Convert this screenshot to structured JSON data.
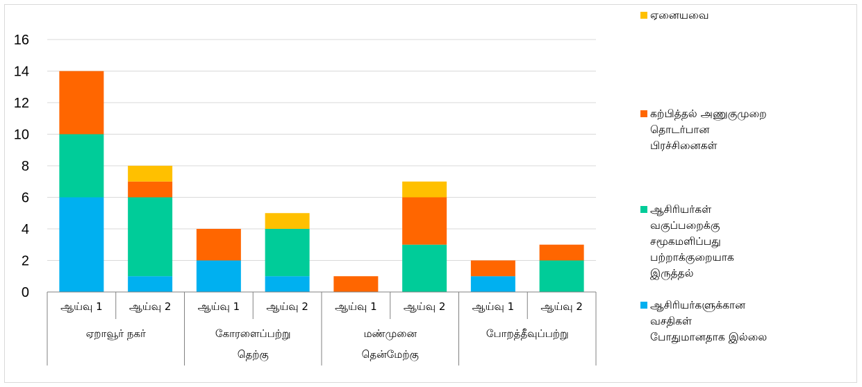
{
  "chart_data": {
    "type": "bar",
    "stacked": true,
    "ylim": [
      0,
      16
    ],
    "yticks": [
      0,
      2,
      4,
      6,
      8,
      10,
      12,
      14,
      16
    ],
    "grid": true,
    "legend_position": "right",
    "groups": [
      "ஏறாவூர் நகர்",
      "கோரளைப்பற்று தெற்கு",
      "மண்முனை தென்மேற்கு",
      "போறத்தீவுப்பற்று"
    ],
    "categories": [
      "ஆய்வு 1",
      "ஆய்வு 2",
      "ஆய்வு 1",
      "ஆய்வு 2",
      "ஆய்வு 1",
      "ஆய்வு 2",
      "ஆய்வு 1",
      "ஆய்வு 2"
    ],
    "series": [
      {
        "name": "ஆசிரியர்களுக்கான வசதிகள் போதுமானதாக இல்லை",
        "color": "#00B0F0",
        "values": [
          6,
          1,
          2,
          1,
          0,
          0,
          1,
          0
        ]
      },
      {
        "name": "ஆசிரியர்கள் வகுப்பறைக்கு சமூகமளிப்பது பற்றாக்குறையாக இருத்தல்",
        "color": "#00CC99",
        "values": [
          4,
          5,
          0,
          3,
          0,
          3,
          0,
          2
        ]
      },
      {
        "name": "கற்பித்தல் அணுகுமுறை தொடர்பான பிரச்சினைகள்",
        "color": "#FF6600",
        "values": [
          4,
          1,
          2,
          0,
          1,
          3,
          1,
          1
        ]
      },
      {
        "name": "ஏனையவை",
        "color": "#FFC000",
        "values": [
          0,
          1,
          0,
          1,
          0,
          1,
          0,
          0
        ]
      }
    ]
  },
  "legend": [
    {
      "label": "ஏனையவை",
      "color": "#FFC000"
    },
    {
      "label": "கற்பித்தல் அணுகுமுறை தொடர்பான பிரச்சினைகள்",
      "color": "#FF6600"
    },
    {
      "label": "ஆசிரியர்கள் வகுப்பறைக்கு சமூகமளிப்பது பற்றாக்குறையாக இருத்தல்",
      "color": "#00CC99"
    },
    {
      "label": "ஆசிரியர்களுக்கான வசதிகள் போதுமானதாக இல்லை",
      "color": "#00B0F0"
    }
  ]
}
